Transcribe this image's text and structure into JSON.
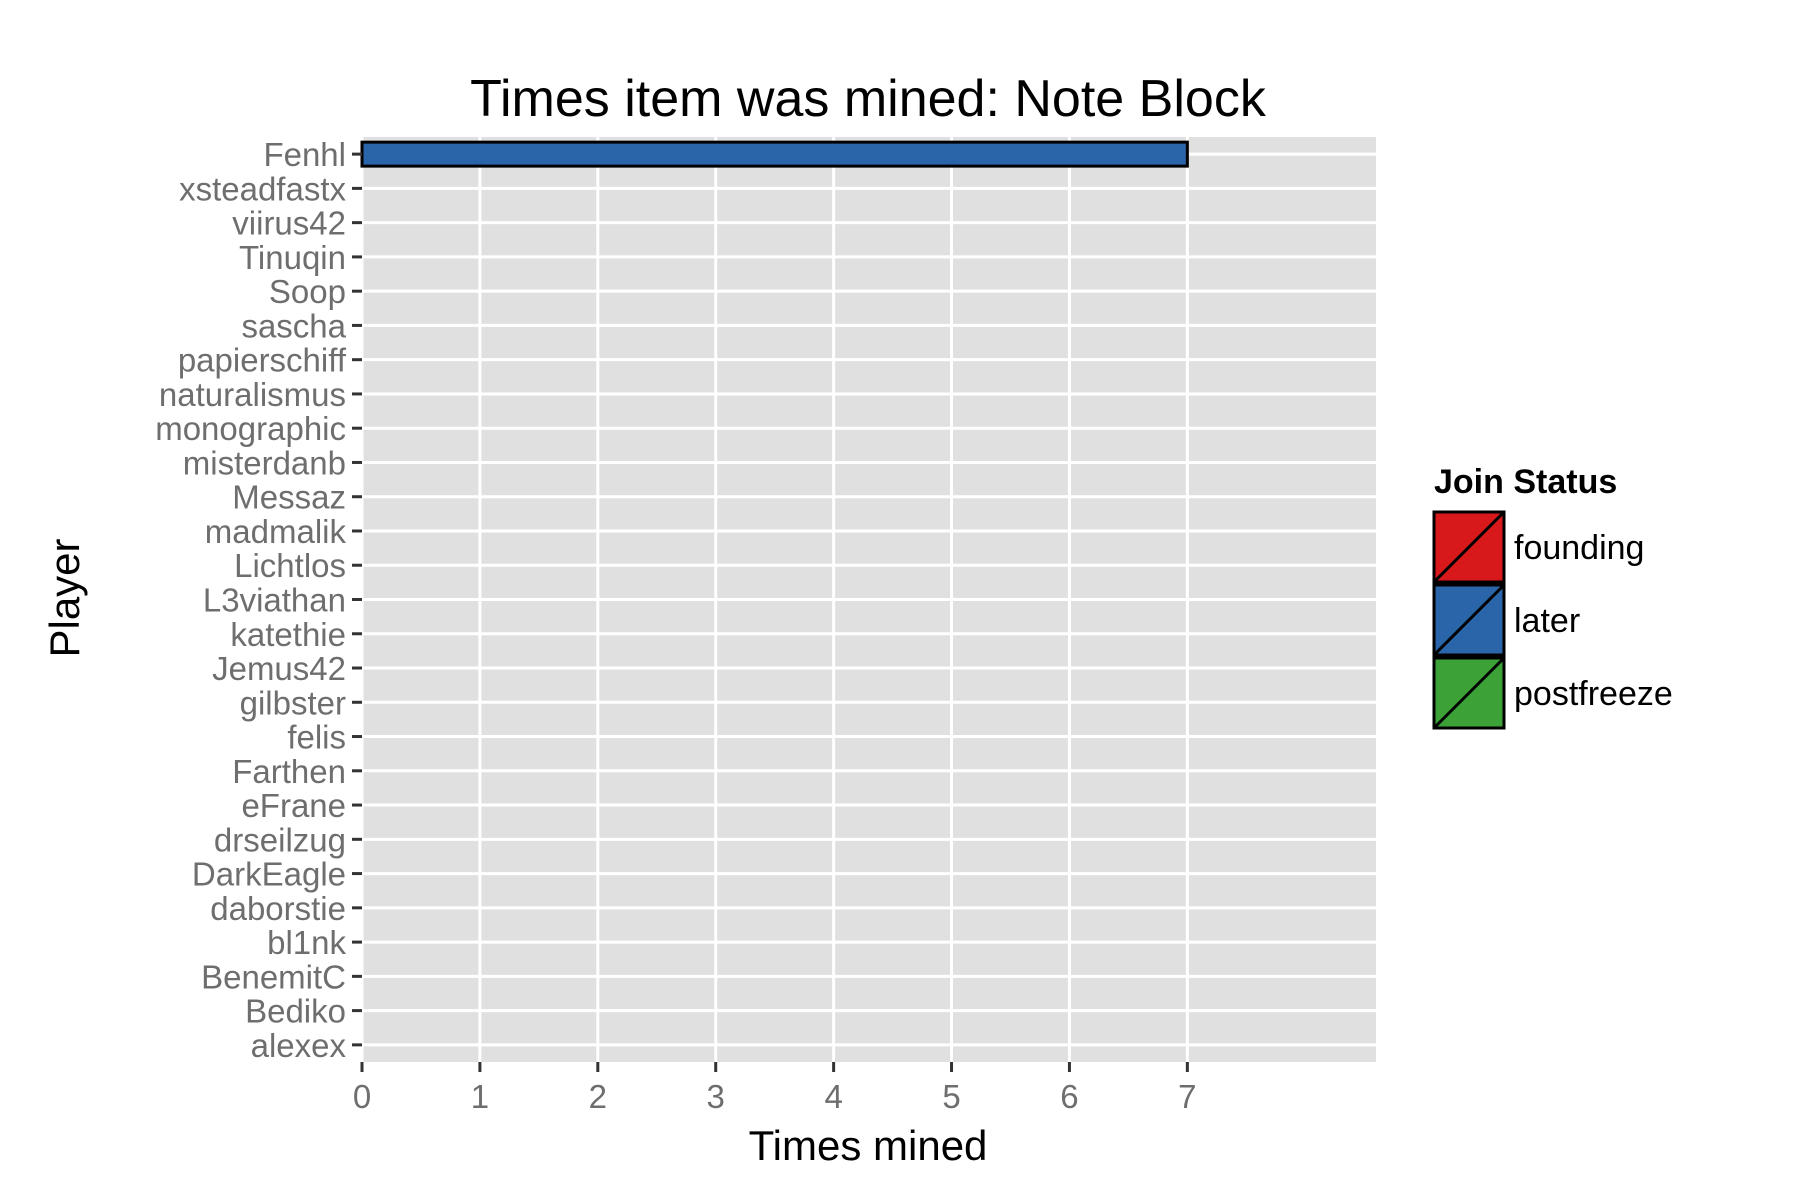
{
  "chart_data": {
    "type": "bar",
    "orientation": "horizontal",
    "title": "Times item was mined: Note Block",
    "xlabel": "Times mined",
    "ylabel": "Player",
    "xlim": [
      0,
      8.6
    ],
    "x_ticks": [
      0,
      1,
      2,
      3,
      4,
      5,
      6,
      7
    ],
    "grid": true,
    "categories": [
      "Fenhl",
      "xsteadfastx",
      "viirus42",
      "Tinuqin",
      "Soop",
      "sascha",
      "papierschiff",
      "naturalismus",
      "monographic",
      "misterdanb",
      "Messaz",
      "madmalik",
      "Lichtlos",
      "L3viathan",
      "katethie",
      "Jemus42",
      "gilbster",
      "felis",
      "Farthen",
      "eFrane",
      "drseilzug",
      "DarkEagle",
      "daborstie",
      "bl1nk",
      "BenemitC",
      "Bediko",
      "alexex"
    ],
    "values": [
      7,
      0,
      0,
      0,
      0,
      0,
      0,
      0,
      0,
      0,
      0,
      0,
      0,
      0,
      0,
      0,
      0,
      0,
      0,
      0,
      0,
      0,
      0,
      0,
      0,
      0,
      0
    ],
    "bar_status": [
      "later",
      "later",
      "later",
      "later",
      "later",
      "later",
      "later",
      "later",
      "later",
      "later",
      "later",
      "later",
      "later",
      "later",
      "later",
      "later",
      "later",
      "later",
      "later",
      "later",
      "later",
      "later",
      "later",
      "later",
      "later",
      "later",
      "later"
    ],
    "legend": {
      "title": "Join Status",
      "position": "right",
      "entries": [
        {
          "label": "founding",
          "color": "#d7191c"
        },
        {
          "label": "later",
          "color": "#2b65a9"
        },
        {
          "label": "postfreeze",
          "color": "#3ca238"
        }
      ]
    },
    "colors": {
      "panel_background": "#e0e0e0",
      "grid": "#ffffff",
      "tick_label": "#6e6e6e",
      "bar_outline": "#000000"
    }
  }
}
